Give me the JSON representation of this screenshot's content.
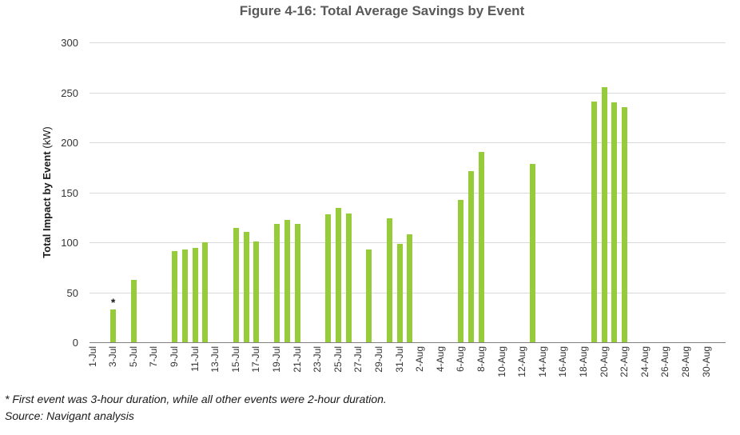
{
  "title": "Figure 4-16: Total Average Savings by Event",
  "footnote": "* First event was 3-hour duration, while all other events were 2-hour duration.",
  "source": "Source: Navigant analysis",
  "colors": {
    "bar": "#96CC3A",
    "grid": "#D9D9D9",
    "axis": "#7F7F7F",
    "title_text": "#595959",
    "tick_text": "#333333"
  },
  "chart_data": {
    "type": "bar",
    "title": "Figure 4-16: Total Average Savings by Event",
    "ylabel": "Total Impact by Event (kW)",
    "ylabel_bold": "Total Impact by Event",
    "ylabel_unit": " (kW)",
    "xlabel": "",
    "ylim": [
      0,
      300
    ],
    "yticks": [
      "0",
      "50",
      "100",
      "150",
      "200",
      "250",
      "300"
    ],
    "grid": "horizontal-light",
    "legend": "none",
    "x_axis": {
      "start": "1-Jul",
      "end": "30-Aug",
      "label_step_days": 2,
      "tick_labels": [
        "1-Jul",
        "3-Jul",
        "5-Jul",
        "7-Jul",
        "9-Jul",
        "11-Jul",
        "13-Jul",
        "15-Jul",
        "17-Jul",
        "19-Jul",
        "21-Jul",
        "23-Jul",
        "25-Jul",
        "27-Jul",
        "29-Jul",
        "31-Jul",
        "2-Aug",
        "4-Aug",
        "6-Aug",
        "8-Aug",
        "10-Aug",
        "12-Aug",
        "14-Aug",
        "16-Aug",
        "18-Aug",
        "20-Aug",
        "22-Aug",
        "24-Aug",
        "26-Aug",
        "28-Aug",
        "30-Aug"
      ]
    },
    "points": [
      {
        "date": "3-Jul",
        "day_offset": 2,
        "value": 33,
        "note": "*"
      },
      {
        "date": "5-Jul",
        "day_offset": 4,
        "value": 62
      },
      {
        "date": "9-Jul",
        "day_offset": 8,
        "value": 91
      },
      {
        "date": "10-Jul",
        "day_offset": 9,
        "value": 93
      },
      {
        "date": "11-Jul",
        "day_offset": 10,
        "value": 94
      },
      {
        "date": "12-Jul",
        "day_offset": 11,
        "value": 100
      },
      {
        "date": "15-Jul",
        "day_offset": 14,
        "value": 114
      },
      {
        "date": "16-Jul",
        "day_offset": 15,
        "value": 110
      },
      {
        "date": "17-Jul",
        "day_offset": 16,
        "value": 101
      },
      {
        "date": "19-Jul",
        "day_offset": 18,
        "value": 118
      },
      {
        "date": "20-Jul",
        "day_offset": 19,
        "value": 122
      },
      {
        "date": "21-Jul",
        "day_offset": 20,
        "value": 118
      },
      {
        "date": "24-Jul",
        "day_offset": 23,
        "value": 128
      },
      {
        "date": "25-Jul",
        "day_offset": 24,
        "value": 134
      },
      {
        "date": "26-Jul",
        "day_offset": 25,
        "value": 129
      },
      {
        "date": "28-Jul",
        "day_offset": 27,
        "value": 93
      },
      {
        "date": "30-Jul",
        "day_offset": 29,
        "value": 124
      },
      {
        "date": "31-Jul",
        "day_offset": 30,
        "value": 98
      },
      {
        "date": "1-Aug",
        "day_offset": 31,
        "value": 108
      },
      {
        "date": "6-Aug",
        "day_offset": 36,
        "value": 142
      },
      {
        "date": "7-Aug",
        "day_offset": 37,
        "value": 171
      },
      {
        "date": "8-Aug",
        "day_offset": 38,
        "value": 190
      },
      {
        "date": "13-Aug",
        "day_offset": 43,
        "value": 178
      },
      {
        "date": "19-Aug",
        "day_offset": 49,
        "value": 241
      },
      {
        "date": "20-Aug",
        "day_offset": 50,
        "value": 255
      },
      {
        "date": "21-Aug",
        "day_offset": 51,
        "value": 240
      },
      {
        "date": "22-Aug",
        "day_offset": 52,
        "value": 235
      }
    ]
  }
}
